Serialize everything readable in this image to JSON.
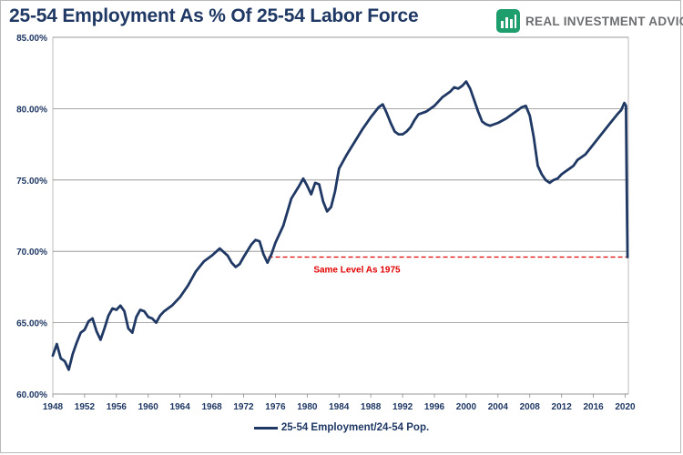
{
  "header": {
    "title": "25-54 Employment As % Of 25-54 Labor Force",
    "brand_name": "REAL INVESTMENT ADVICE",
    "brand_icon": "bar-chart-logo-icon",
    "brand_color": "#1e9e6d"
  },
  "chart_data": {
    "type": "line",
    "title": "25-54 Employment As % Of 25-54 Labor Force",
    "xlabel": "",
    "ylabel": "",
    "xlim": [
      1948,
      2020.4
    ],
    "ylim": [
      60,
      85
    ],
    "grid": true,
    "legend_position": "bottom",
    "line_color": "#1f3864",
    "y_ticks": [
      "60.00%",
      "65.00%",
      "70.00%",
      "75.00%",
      "80.00%",
      "85.00%"
    ],
    "y_tick_values": [
      60,
      65,
      70,
      75,
      80,
      85
    ],
    "x_ticks": [
      "1948",
      "1952",
      "1956",
      "1960",
      "1964",
      "1968",
      "1972",
      "1976",
      "1980",
      "1984",
      "1988",
      "1992",
      "1996",
      "2000",
      "2004",
      "2008",
      "2012",
      "2016",
      "2020"
    ],
    "x_tick_values": [
      1948,
      1952,
      1956,
      1960,
      1964,
      1968,
      1972,
      1976,
      1980,
      1984,
      1988,
      1992,
      1996,
      2000,
      2004,
      2008,
      2012,
      2016,
      2020
    ],
    "series": [
      {
        "name": "25-54 Employment/24-54 Pop.",
        "x": [
          1948.0,
          1948.5,
          1949.0,
          1949.5,
          1950.0,
          1950.5,
          1951.0,
          1951.5,
          1952.0,
          1952.5,
          1953.0,
          1953.5,
          1954.0,
          1954.5,
          1955.0,
          1955.5,
          1956.0,
          1956.5,
          1957.0,
          1957.5,
          1958.0,
          1958.5,
          1959.0,
          1959.5,
          1960.0,
          1960.5,
          1961.0,
          1961.5,
          1962.0,
          1962.5,
          1963.0,
          1964.0,
          1965.0,
          1966.0,
          1967.0,
          1968.0,
          1969.0,
          1970.0,
          1970.5,
          1971.0,
          1971.5,
          1972.0,
          1973.0,
          1973.5,
          1974.0,
          1974.5,
          1975.0,
          1975.5,
          1976.0,
          1977.0,
          1978.0,
          1979.0,
          1979.5,
          1980.0,
          1980.5,
          1981.0,
          1981.5,
          1982.0,
          1982.5,
          1983.0,
          1983.5,
          1984.0,
          1985.0,
          1986.0,
          1987.0,
          1988.0,
          1989.0,
          1989.5,
          1990.0,
          1990.5,
          1991.0,
          1991.5,
          1992.0,
          1992.5,
          1993.0,
          1993.5,
          1994.0,
          1995.0,
          1996.0,
          1997.0,
          1998.0,
          1998.5,
          1999.0,
          1999.5,
          2000.0,
          2000.5,
          2001.0,
          2001.5,
          2002.0,
          2002.5,
          2003.0,
          2004.0,
          2005.0,
          2006.0,
          2006.5,
          2007.0,
          2007.5,
          2008.0,
          2008.5,
          2009.0,
          2009.5,
          2010.0,
          2010.5,
          2011.0,
          2011.5,
          2012.0,
          2012.5,
          2013.0,
          2013.5,
          2014.0,
          2015.0,
          2016.0,
          2017.0,
          2018.0,
          2019.0,
          2019.5,
          2019.9,
          2020.1,
          2020.2,
          2020.3
        ],
        "values": [
          62.7,
          63.5,
          62.5,
          62.3,
          61.7,
          62.8,
          63.6,
          64.3,
          64.5,
          65.1,
          65.3,
          64.4,
          63.8,
          64.6,
          65.5,
          66.0,
          65.9,
          66.2,
          65.8,
          64.6,
          64.3,
          65.4,
          65.9,
          65.8,
          65.4,
          65.3,
          65.0,
          65.5,
          65.8,
          66.0,
          66.2,
          66.8,
          67.6,
          68.6,
          69.3,
          69.7,
          70.2,
          69.7,
          69.2,
          68.9,
          69.1,
          69.6,
          70.5,
          70.8,
          70.7,
          69.8,
          69.2,
          69.8,
          70.6,
          71.8,
          73.7,
          74.6,
          75.1,
          74.6,
          74.0,
          74.8,
          74.7,
          73.5,
          72.8,
          73.1,
          74.2,
          75.8,
          76.8,
          77.7,
          78.6,
          79.4,
          80.1,
          80.3,
          79.7,
          79.0,
          78.4,
          78.2,
          78.2,
          78.4,
          78.7,
          79.2,
          79.6,
          79.8,
          80.2,
          80.8,
          81.2,
          81.5,
          81.4,
          81.6,
          81.9,
          81.4,
          80.6,
          79.8,
          79.1,
          78.9,
          78.8,
          79.0,
          79.3,
          79.7,
          79.9,
          80.1,
          80.2,
          79.5,
          78.0,
          76.0,
          75.4,
          75.0,
          74.8,
          75.0,
          75.1,
          75.4,
          75.6,
          75.8,
          76.0,
          76.4,
          76.8,
          77.5,
          78.2,
          78.9,
          79.6,
          79.9,
          80.4,
          80.2,
          74.0,
          69.6
        ]
      }
    ],
    "annotations": [
      {
        "text": "Same Level As 1975",
        "color": "#e00000",
        "y": 69.6,
        "x_from": 1975.1,
        "x_to": 2020.3,
        "label_x": 1980.8
      }
    ]
  }
}
